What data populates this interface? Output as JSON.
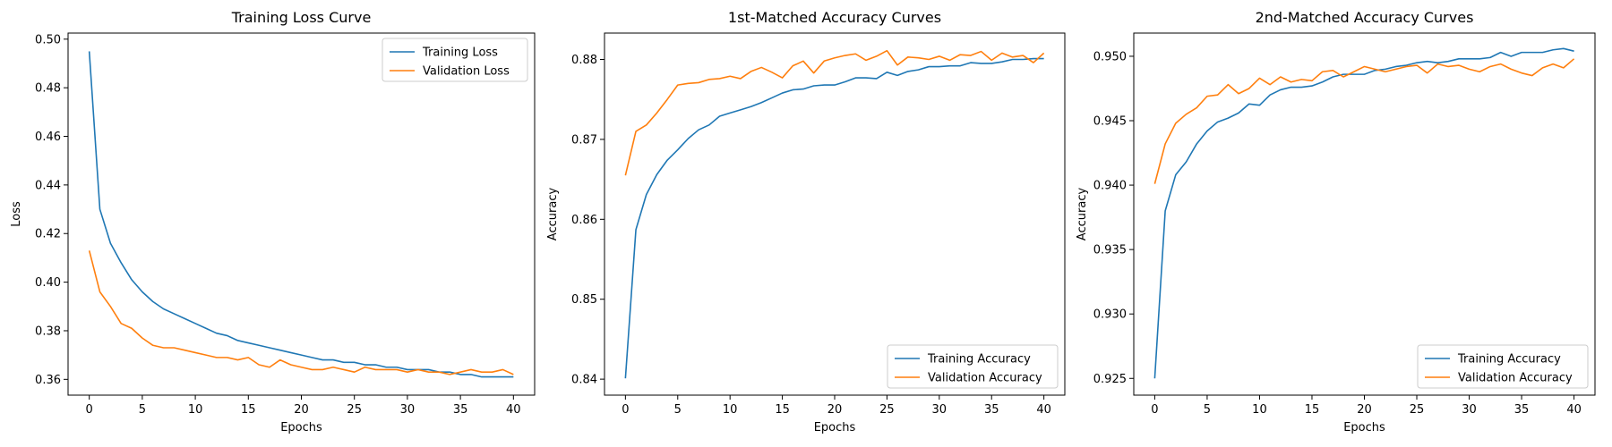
{
  "colors": {
    "training": "#1f77b4",
    "validation": "#ff7f0e"
  },
  "chart_data": [
    {
      "type": "line",
      "title": "Training Loss Curve",
      "xlabel": "Epochs",
      "ylabel": "Loss",
      "xlim": [
        -2,
        42
      ],
      "ylim": [
        0.3535,
        0.5025
      ],
      "xticks": [
        0,
        5,
        10,
        15,
        20,
        25,
        30,
        35,
        40
      ],
      "yticks": [
        0.36,
        0.38,
        0.4,
        0.42,
        0.44,
        0.46,
        0.48,
        0.5
      ],
      "ytick_labels": [
        "0.36",
        "0.38",
        "0.40",
        "0.42",
        "0.44",
        "0.46",
        "0.48",
        "0.50"
      ],
      "legend_position": "top-right",
      "x": [
        0,
        1,
        2,
        3,
        4,
        5,
        6,
        7,
        8,
        9,
        10,
        11,
        12,
        13,
        14,
        15,
        16,
        17,
        18,
        19,
        20,
        21,
        22,
        23,
        24,
        25,
        26,
        27,
        28,
        29,
        30,
        31,
        32,
        33,
        34,
        35,
        36,
        37,
        38,
        39,
        40
      ],
      "series": [
        {
          "name": "Training Loss",
          "color": "#1f77b4",
          "values": [
            0.495,
            0.43,
            0.416,
            0.408,
            0.401,
            0.396,
            0.392,
            0.389,
            0.387,
            0.385,
            0.383,
            0.381,
            0.379,
            0.378,
            0.376,
            0.375,
            0.374,
            0.373,
            0.372,
            0.371,
            0.37,
            0.369,
            0.368,
            0.368,
            0.367,
            0.367,
            0.366,
            0.366,
            0.365,
            0.365,
            0.364,
            0.364,
            0.364,
            0.363,
            0.363,
            0.362,
            0.362,
            0.361,
            0.361,
            0.361,
            0.361
          ]
        },
        {
          "name": "Validation Loss",
          "color": "#ff7f0e",
          "values": [
            0.413,
            0.396,
            0.39,
            0.383,
            0.381,
            0.377,
            0.374,
            0.373,
            0.373,
            0.372,
            0.371,
            0.37,
            0.369,
            0.369,
            0.368,
            0.369,
            0.366,
            0.365,
            0.368,
            0.366,
            0.365,
            0.364,
            0.364,
            0.365,
            0.364,
            0.363,
            0.365,
            0.364,
            0.364,
            0.364,
            0.363,
            0.364,
            0.363,
            0.363,
            0.362,
            0.363,
            0.364,
            0.363,
            0.363,
            0.364,
            0.362
          ]
        }
      ]
    },
    {
      "type": "line",
      "title": "1st-Matched Accuracy Curves",
      "xlabel": "Epochs",
      "ylabel": "Accuracy",
      "xlim": [
        -2,
        42
      ],
      "ylim": [
        0.838,
        0.8833
      ],
      "xticks": [
        0,
        5,
        10,
        15,
        20,
        25,
        30,
        35,
        40
      ],
      "yticks": [
        0.84,
        0.85,
        0.86,
        0.87,
        0.88
      ],
      "ytick_labels": [
        "0.84",
        "0.85",
        "0.86",
        "0.87",
        "0.88"
      ],
      "legend_position": "bottom-right",
      "x": [
        0,
        1,
        2,
        3,
        4,
        5,
        6,
        7,
        8,
        9,
        10,
        11,
        12,
        13,
        14,
        15,
        16,
        17,
        18,
        19,
        20,
        21,
        22,
        23,
        24,
        25,
        26,
        27,
        28,
        29,
        30,
        31,
        32,
        33,
        34,
        35,
        36,
        37,
        38,
        39,
        40
      ],
      "series": [
        {
          "name": "Training Accuracy",
          "color": "#1f77b4",
          "values": [
            0.8401,
            0.8587,
            0.8631,
            0.8656,
            0.8674,
            0.8687,
            0.8701,
            0.8712,
            0.8718,
            0.8729,
            0.8733,
            0.8737,
            0.8741,
            0.8746,
            0.8752,
            0.8758,
            0.8762,
            0.8763,
            0.8767,
            0.8768,
            0.8768,
            0.8772,
            0.8777,
            0.8777,
            0.8776,
            0.8784,
            0.878,
            0.8785,
            0.8787,
            0.8791,
            0.8791,
            0.8792,
            0.8792,
            0.8796,
            0.8795,
            0.8795,
            0.8797,
            0.88,
            0.88,
            0.8801,
            0.8801
          ]
        },
        {
          "name": "Validation Accuracy",
          "color": "#ff7f0e",
          "values": [
            0.8655,
            0.871,
            0.8718,
            0.8733,
            0.875,
            0.8768,
            0.877,
            0.8771,
            0.8775,
            0.8776,
            0.8779,
            0.8776,
            0.8785,
            0.879,
            0.8784,
            0.8777,
            0.8792,
            0.8798,
            0.8783,
            0.8798,
            0.8802,
            0.8805,
            0.8807,
            0.8799,
            0.8804,
            0.8811,
            0.8793,
            0.8803,
            0.8802,
            0.88,
            0.8804,
            0.8799,
            0.8806,
            0.8805,
            0.881,
            0.8799,
            0.8808,
            0.8803,
            0.8805,
            0.8796,
            0.8808
          ]
        }
      ]
    },
    {
      "type": "line",
      "title": "2nd-Matched Accuracy Curves",
      "xlabel": "Epochs",
      "ylabel": "Accuracy",
      "xlim": [
        -2,
        42
      ],
      "ylim": [
        0.9237,
        0.9518
      ],
      "xticks": [
        0,
        5,
        10,
        15,
        20,
        25,
        30,
        35,
        40
      ],
      "yticks": [
        0.925,
        0.93,
        0.935,
        0.94,
        0.945,
        0.95
      ],
      "ytick_labels": [
        "0.925",
        "0.930",
        "0.935",
        "0.940",
        "0.945",
        "0.950"
      ],
      "legend_position": "bottom-right",
      "x": [
        0,
        1,
        2,
        3,
        4,
        5,
        6,
        7,
        8,
        9,
        10,
        11,
        12,
        13,
        14,
        15,
        16,
        17,
        18,
        19,
        20,
        21,
        22,
        23,
        24,
        25,
        26,
        27,
        28,
        29,
        30,
        31,
        32,
        33,
        34,
        35,
        36,
        37,
        38,
        39,
        40
      ],
      "series": [
        {
          "name": "Training Accuracy",
          "color": "#1f77b4",
          "values": [
            0.925,
            0.938,
            0.9408,
            0.9418,
            0.9432,
            0.9442,
            0.9449,
            0.9452,
            0.9456,
            0.9463,
            0.9462,
            0.947,
            0.9474,
            0.9476,
            0.9476,
            0.9477,
            0.948,
            0.9484,
            0.9486,
            0.9486,
            0.9486,
            0.9489,
            0.949,
            0.9492,
            0.9493,
            0.9495,
            0.9496,
            0.9495,
            0.9496,
            0.9498,
            0.9498,
            0.9498,
            0.9499,
            0.9503,
            0.95,
            0.9503,
            0.9503,
            0.9503,
            0.9505,
            0.9506,
            0.9504
          ]
        },
        {
          "name": "Validation Accuracy",
          "color": "#ff7f0e",
          "values": [
            0.9401,
            0.9432,
            0.9448,
            0.9455,
            0.946,
            0.9469,
            0.947,
            0.9478,
            0.9471,
            0.9475,
            0.9483,
            0.9478,
            0.9484,
            0.948,
            0.9482,
            0.9481,
            0.9488,
            0.9489,
            0.9484,
            0.9488,
            0.9492,
            0.949,
            0.9488,
            0.949,
            0.9492,
            0.9493,
            0.9487,
            0.9494,
            0.9492,
            0.9493,
            0.949,
            0.9488,
            0.9492,
            0.9494,
            0.949,
            0.9487,
            0.9485,
            0.9491,
            0.9494,
            0.9491,
            0.9498
          ]
        }
      ]
    }
  ]
}
